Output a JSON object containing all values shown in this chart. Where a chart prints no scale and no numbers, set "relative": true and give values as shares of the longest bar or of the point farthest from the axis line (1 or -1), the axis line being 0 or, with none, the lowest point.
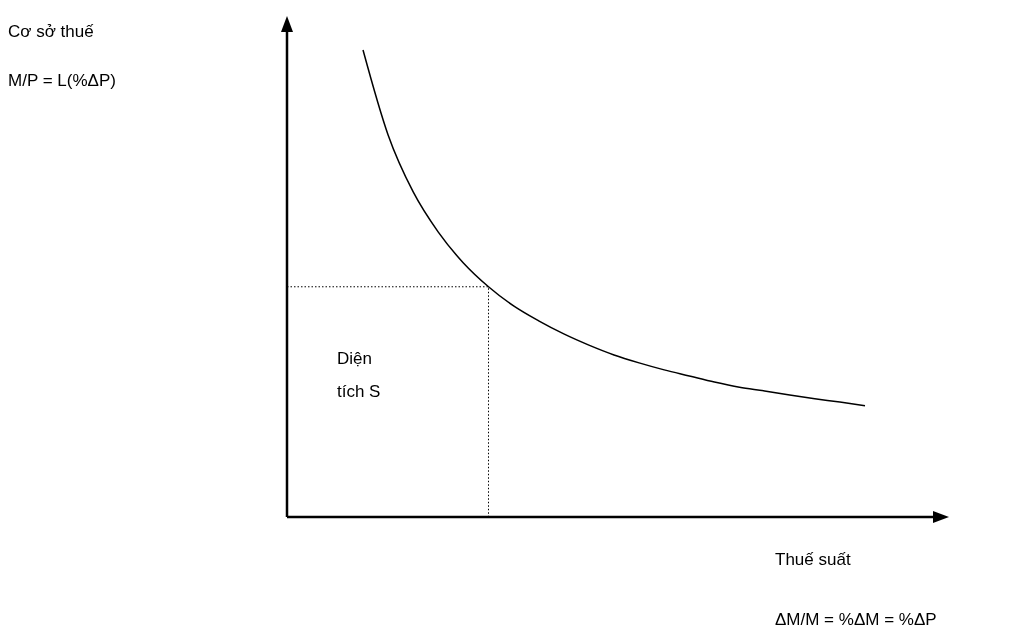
{
  "chart_data": {
    "type": "line",
    "relative": true,
    "xlabel": "Thuế suất",
    "annotations": [
      "M/P = L(%ΔP)",
      "ΔM/M = %ΔM = %ΔP",
      "Diện tích S",
      "Cơ sở thuế"
    ],
    "categories": [
      null,
      null,
      null,
      null,
      null,
      null,
      null,
      null,
      null,
      null,
      null,
      null,
      null,
      null,
      null,
      null,
      null,
      null,
      null,
      null,
      null
    ],
    "series": [
      {
        "color": "#000000",
        "values": [
          1,
          0.818,
          0.696,
          0.61,
          0.544,
          0.493,
          0.452,
          0.42,
          0.392,
          0.368,
          0.347,
          0.33,
          0.315,
          0.302,
          0.289,
          0.278,
          0.27,
          0.261,
          0.253,
          0.246,
          0.238
        ]
      }
    ],
    "ref_lines": [
      {
        "axis": "y",
        "value": 0.493,
        "line_style": "dotted"
      }
    ],
    "line_style": "solid"
  }
}
